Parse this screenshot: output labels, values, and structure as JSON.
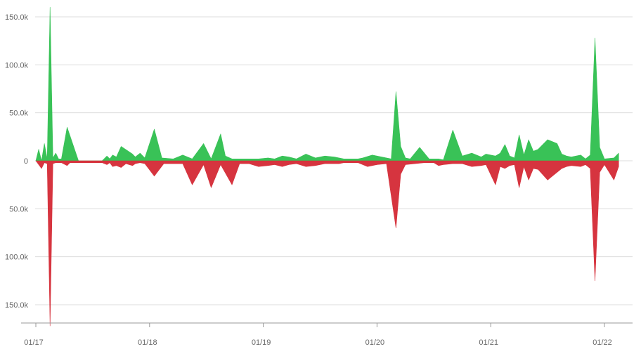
{
  "chart_data": {
    "type": "area",
    "x_ticks": [
      "01/17",
      "01/18",
      "01/19",
      "01/20",
      "01/21",
      "01/22"
    ],
    "y_ticks": [
      "150.0k",
      "100.0k",
      "50.0k",
      "0",
      "50.0k",
      "100.0k",
      "150.0k"
    ],
    "y_tick_values": [
      150000,
      100000,
      50000,
      0,
      -50000,
      -100000,
      -150000
    ],
    "ylim": [
      -175000,
      160000
    ],
    "grid": true,
    "x_month_range": [
      0,
      61.5
    ],
    "colors": {
      "positive": "#2fbf4f",
      "negative": "#d42a35",
      "grid": "#dcdcdc",
      "axis": "#999999"
    },
    "series": [
      {
        "color": "#2fbf4f",
        "x": [
          0,
          0.3,
          0.6,
          0.9,
          1.2,
          1.5,
          1.8,
          2.1,
          2.4,
          2.7,
          3.3,
          4.5,
          4.8,
          5.1,
          5.5,
          6,
          6.5,
          7,
          7.5,
          7.8,
          8.1,
          8.5,
          9,
          10.2,
          10.5,
          11,
          11.5,
          12.5,
          13.3,
          14.5,
          15.5,
          16.5,
          17.7,
          18.5,
          19.5,
          20,
          20.7,
          21.5,
          22.5,
          23.5,
          24.5,
          25.2,
          26,
          26.7,
          27.5,
          28.5,
          29.5,
          30.5,
          31.5,
          32,
          32.5,
          33,
          33.5,
          34,
          34.5,
          35.5,
          36.5,
          37.5,
          38,
          38.5,
          39,
          39.5,
          40.5,
          41.5,
          42.5,
          43,
          44,
          45,
          46,
          47,
          47.5,
          48.5,
          49,
          49.5,
          50,
          50.5,
          51,
          51.5,
          52,
          52.5,
          53,
          54,
          55,
          55.5,
          56,
          56.5,
          57.5,
          58,
          58.5,
          59,
          59.5,
          60,
          61,
          61.5
        ],
        "values": [
          0,
          12000,
          0,
          18000,
          2000,
          160000,
          3000,
          8000,
          2000,
          2000,
          35000,
          0,
          0,
          0,
          0,
          0,
          0,
          0,
          5000,
          2000,
          6000,
          4000,
          15000,
          7000,
          4000,
          8000,
          3000,
          33000,
          3000,
          2000,
          6000,
          2000,
          18000,
          2000,
          28000,
          5000,
          2000,
          2000,
          2000,
          2000,
          3000,
          2000,
          5000,
          4000,
          2000,
          7000,
          3000,
          5000,
          4000,
          3000,
          2000,
          2000,
          2000,
          2000,
          3000,
          6000,
          4000,
          2000,
          72000,
          15000,
          3000,
          2000,
          14000,
          2000,
          2000,
          1000,
          32000,
          5000,
          8000,
          4000,
          7000,
          5000,
          8000,
          17000,
          5000,
          3000,
          27000,
          6000,
          22000,
          10000,
          12000,
          22000,
          18000,
          7000,
          5000,
          4000,
          6000,
          2000,
          6000,
          128000,
          14000,
          2000,
          3000,
          8000
        ],
        "series_note_unused": ""
      },
      {
        "color": "#d42a35",
        "x": [
          0,
          0.6,
          0.9,
          1.2,
          1.5,
          1.8,
          2.1,
          2.4,
          2.7,
          3.3,
          3.6,
          4,
          4.5,
          5,
          5.5,
          6,
          6.5,
          7,
          7.5,
          7.8,
          8.1,
          8.5,
          9,
          9.5,
          10.2,
          10.5,
          11,
          11.5,
          12.5,
          13.5,
          14.5,
          15.5,
          16.5,
          17.7,
          18.5,
          19.5,
          20.7,
          21.5,
          22.5,
          23.5,
          24.5,
          25.2,
          26,
          26.7,
          27.5,
          28.5,
          29.5,
          30.5,
          31.5,
          32,
          32.5,
          33,
          33.5,
          34,
          35,
          36,
          37,
          38,
          38.5,
          39,
          40,
          41,
          42,
          42.5,
          43,
          44,
          45,
          46,
          47,
          47.5,
          48.5,
          49,
          49.5,
          50,
          50.5,
          51,
          51.5,
          52,
          52.5,
          53,
          54,
          55,
          55.5,
          56,
          56.5,
          57.5,
          58,
          58.5,
          59,
          59.5,
          60,
          61,
          61.5
        ],
        "values": [
          0,
          -8000,
          -2000,
          -3000,
          -172000,
          -3000,
          -2000,
          -2000,
          -2000,
          -5000,
          -2000,
          -2000,
          -2000,
          -2000,
          -2000,
          -2000,
          -2000,
          -2000,
          -4000,
          -2000,
          -6000,
          -5000,
          -7000,
          -3000,
          -5000,
          -3000,
          -2000,
          -3000,
          -16000,
          -3000,
          -3000,
          -3000,
          -25000,
          -4000,
          -28000,
          -4000,
          -25000,
          -3000,
          -3000,
          -6000,
          -5000,
          -4000,
          -6000,
          -4000,
          -3000,
          -6000,
          -5000,
          -3000,
          -3000,
          -3000,
          -2000,
          -2000,
          -2000,
          -2000,
          -6000,
          -4000,
          -3000,
          -70000,
          -14000,
          -4000,
          -3000,
          -2000,
          -2000,
          -5000,
          -4000,
          -3000,
          -3000,
          -6000,
          -5000,
          -4000,
          -25000,
          -6000,
          -8000,
          -5000,
          -4000,
          -28000,
          -6000,
          -20000,
          -8000,
          -9000,
          -20000,
          -12000,
          -8000,
          -6000,
          -5000,
          -6000,
          -4000,
          -8000,
          -125000,
          -12000,
          -4000,
          -20000,
          -6000
        ],
        "series_note_unused": ""
      }
    ]
  }
}
